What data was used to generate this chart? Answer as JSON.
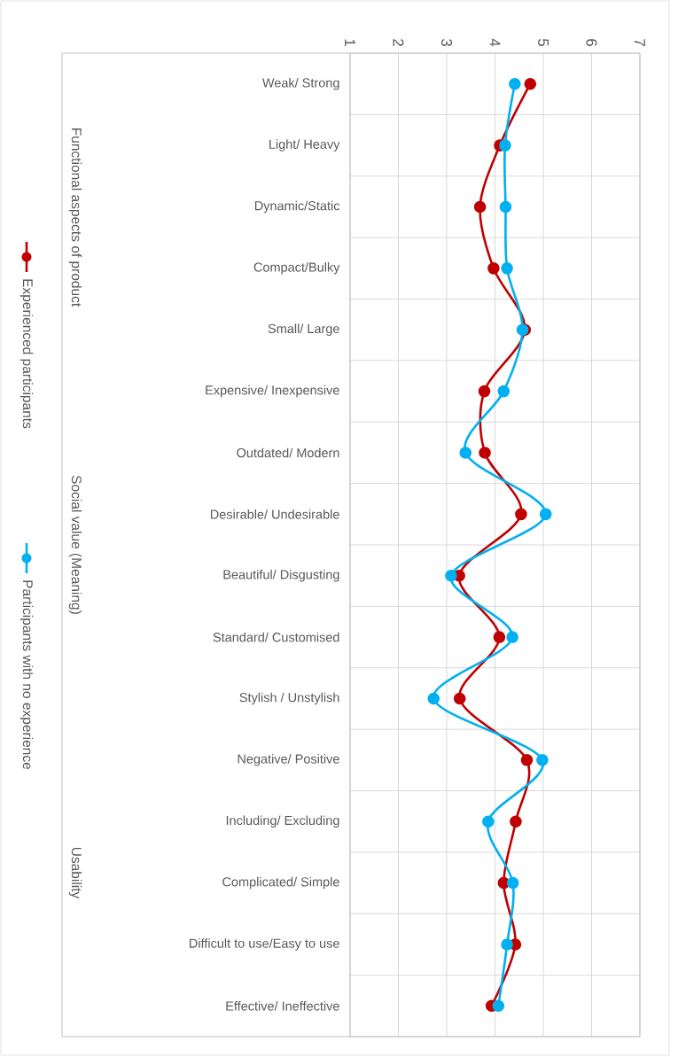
{
  "chart_data": {
    "type": "line",
    "orientation": "horizontal",
    "categories": [
      "Weak/ Strong",
      "Light/ Heavy",
      "Dynamic/Static",
      "Compact/Bulky",
      "Small/ Large",
      "Expensive/ Inexpensive",
      "Outdated/ Modern",
      "Desirable/ Undesirable",
      "Beautiful/ Disgusting",
      "Standard/ Customised",
      "Stylish / Unstylish",
      "Negative/ Positive",
      "Including/ Excluding",
      "Complicated/ Simple",
      "Difficult to use/Easy to use",
      "Effective/ Ineffective"
    ],
    "series": [
      {
        "name": "Experienced participants",
        "color": "#c00000",
        "values": [
          4.73,
          4.1,
          3.69,
          3.97,
          4.62,
          3.78,
          3.79,
          4.54,
          3.26,
          4.09,
          3.27,
          4.66,
          4.43,
          4.18,
          4.42,
          3.93
        ]
      },
      {
        "name": "Participants with no experience",
        "color": "#00b0f0",
        "values": [
          4.41,
          4.21,
          4.22,
          4.25,
          4.57,
          4.18,
          3.39,
          5.05,
          3.09,
          4.36,
          2.73,
          4.98,
          3.86,
          4.37,
          4.25,
          4.07
        ]
      }
    ],
    "xlim": [
      1,
      7
    ],
    "xticks": [
      1,
      2,
      3,
      4,
      5,
      6,
      7
    ],
    "annotations": [
      "Functional aspects of product",
      "Social value (Meaning)",
      "Usability"
    ],
    "grid": true,
    "legend": "left",
    "marker": "circle",
    "line_style": "solid"
  }
}
